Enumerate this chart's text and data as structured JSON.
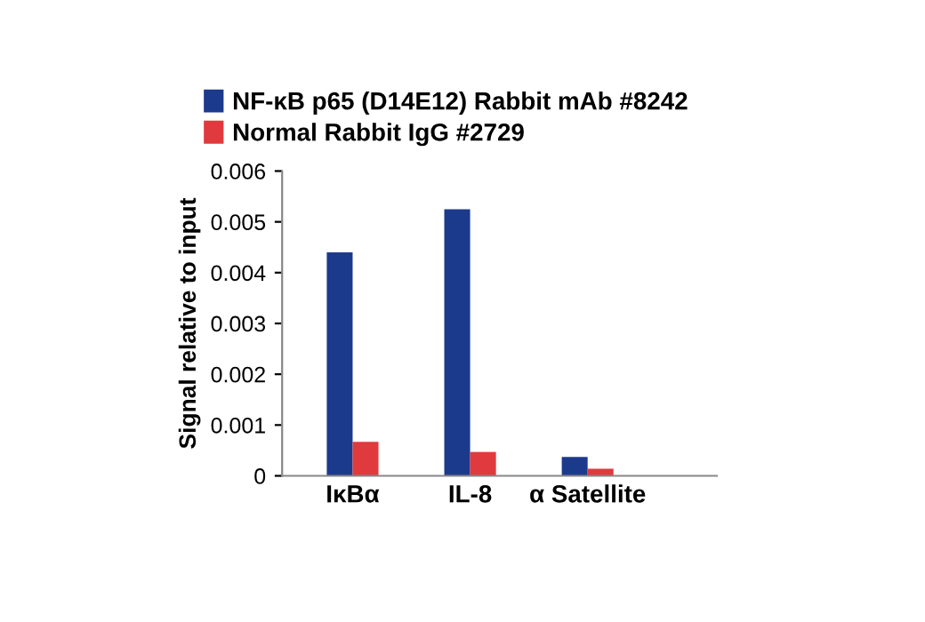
{
  "chart_data": {
    "type": "bar",
    "ylabel": "Signal relative to input",
    "categories": [
      "IκBα",
      "IL-8",
      "α Satellite"
    ],
    "series": [
      {
        "name": "NF-κB p65 (D14E12) Rabbit mAb #8242",
        "color": "#1c3a8c",
        "values": [
          0.0044,
          0.00525,
          0.00037
        ]
      },
      {
        "name": "Normal Rabbit IgG #2729",
        "color": "#e03a3e",
        "values": [
          0.00067,
          0.00047,
          0.00014
        ]
      }
    ],
    "ylim": [
      0,
      0.006
    ],
    "yticks": [
      0,
      0.001,
      0.002,
      0.003,
      0.004,
      0.005,
      0.006
    ],
    "grid": false,
    "legend": "top left"
  }
}
